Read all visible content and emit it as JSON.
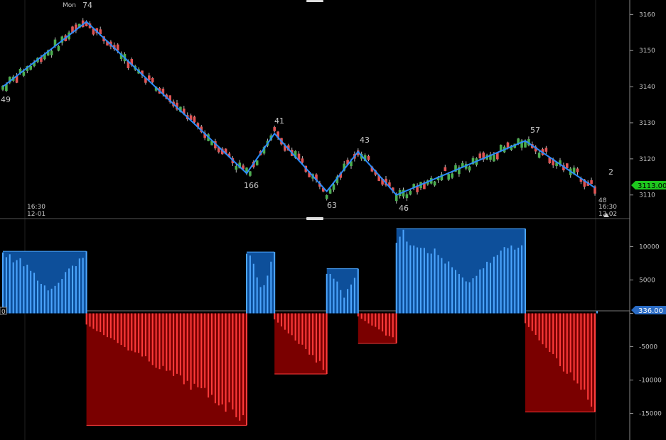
{
  "chart_data": [
    {
      "type": "candlestick",
      "ylim": [
        3107,
        3164
      ],
      "y_ticks": [
        3110,
        3120,
        3130,
        3140,
        3150,
        3160
      ],
      "current_price_tag": "3113.00",
      "up_color": "#4caf50",
      "down_color": "#e05555",
      "zigzag_color": "#2b8cff",
      "zigzag_points": [
        {
          "bar": 0,
          "price": 3140
        },
        {
          "bar": 24,
          "price": 3158
        },
        {
          "bar": 70,
          "price": 3116
        },
        {
          "bar": 78,
          "price": 3127
        },
        {
          "bar": 93,
          "price": 3111
        },
        {
          "bar": 102,
          "price": 3122
        },
        {
          "bar": 113,
          "price": 3110
        },
        {
          "bar": 150,
          "price": 3125
        },
        {
          "bar": 170,
          "price": 3112
        }
      ],
      "swing_labels": [
        "49",
        "74",
        "166",
        "41",
        "63",
        "43",
        "46",
        "57",
        "2",
        "48"
      ],
      "time_labels": [
        {
          "time": "16:30",
          "date": "12-01"
        },
        {
          "time": "16:30",
          "date": "12-02"
        }
      ],
      "day_label": "Mon"
    },
    {
      "type": "bar",
      "ylim": [
        -19000,
        14000
      ],
      "y_ticks": [
        10000,
        5000,
        0,
        -5000,
        -10000,
        -15000
      ],
      "y_tick_labels": [
        "10000",
        "5000",
        "",
        "-5000",
        "-10000",
        "-15000"
      ],
      "current_value_tag": "336.00",
      "zero_label": "0",
      "pos_light": "#4da6ff",
      "pos_dark": "#0d4f9a",
      "neg_light": "#ff3b3b",
      "neg_dark": "#7a0000",
      "segments": [
        {
          "start": 0,
          "end": 24,
          "sign": 1,
          "envelope": 9300
        },
        {
          "start": 24,
          "end": 70,
          "sign": -1,
          "envelope": -16800
        },
        {
          "start": 70,
          "end": 78,
          "sign": 1,
          "envelope": 9200
        },
        {
          "start": 78,
          "end": 93,
          "sign": -1,
          "envelope": -9100
        },
        {
          "start": 93,
          "end": 102,
          "sign": 1,
          "envelope": 6700
        },
        {
          "start": 102,
          "end": 113,
          "sign": -1,
          "envelope": -4500
        },
        {
          "start": 113,
          "end": 150,
          "sign": 1,
          "envelope": 12700
        },
        {
          "start": 150,
          "end": 170,
          "sign": -1,
          "envelope": -14800
        }
      ],
      "last_bar_value": 336
    }
  ]
}
